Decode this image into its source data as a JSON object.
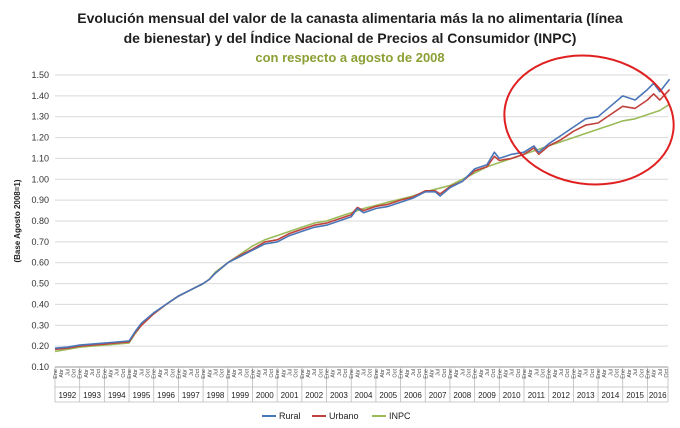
{
  "chart_data": {
    "type": "line",
    "title_line1": "Evolución mensual del valor de la canasta alimentaria más la no alimentaria (línea",
    "title_line2": "de bienestar) y del Índice Nacional de Precios al Consumidor (INPC)",
    "subtitle": "con respecto a agosto de 2008",
    "ylabel": "(Base Agosto 2008=1)",
    "ylim": [
      0.1,
      1.5
    ],
    "ytick_step": 0.1,
    "month_labels": [
      "Ene",
      "Abr",
      "Jul",
      "Oct"
    ],
    "years": [
      "1992",
      "1993",
      "1994",
      "1995",
      "1996",
      "1997",
      "1998",
      "1999",
      "2000",
      "2001",
      "2002",
      "2003",
      "2004",
      "2005",
      "2006",
      "2007",
      "2008",
      "2009",
      "2010",
      "2011",
      "2012",
      "2013",
      "2014",
      "2015",
      "2016"
    ],
    "last_year_partial_months": 10,
    "legend_position": "bottom",
    "grid": true,
    "highlight_ellipse": {
      "color": "#e02020"
    },
    "x_note": "quarterly points, t = years since Jan 1992",
    "series": [
      {
        "name": "Rural",
        "color": "#4a76b8",
        "values": [
          [
            0,
            0.19
          ],
          [
            0.5,
            0.195
          ],
          [
            1,
            0.205
          ],
          [
            1.5,
            0.21
          ],
          [
            2,
            0.215
          ],
          [
            2.5,
            0.22
          ],
          [
            3,
            0.225
          ],
          [
            3.25,
            0.27
          ],
          [
            3.5,
            0.31
          ],
          [
            4,
            0.36
          ],
          [
            4.5,
            0.4
          ],
          [
            5,
            0.44
          ],
          [
            5.5,
            0.47
          ],
          [
            6,
            0.5
          ],
          [
            6.25,
            0.52
          ],
          [
            6.5,
            0.55
          ],
          [
            7,
            0.6
          ],
          [
            7.5,
            0.63
          ],
          [
            8,
            0.66
          ],
          [
            8.5,
            0.69
          ],
          [
            9,
            0.7
          ],
          [
            9.5,
            0.73
          ],
          [
            10,
            0.75
          ],
          [
            10.5,
            0.77
          ],
          [
            11,
            0.78
          ],
          [
            11.5,
            0.8
          ],
          [
            12,
            0.82
          ],
          [
            12.25,
            0.86
          ],
          [
            12.5,
            0.84
          ],
          [
            13,
            0.86
          ],
          [
            13.5,
            0.87
          ],
          [
            14,
            0.89
          ],
          [
            14.5,
            0.91
          ],
          [
            15,
            0.94
          ],
          [
            15.4,
            0.94
          ],
          [
            15.6,
            0.92
          ],
          [
            16,
            0.96
          ],
          [
            16.5,
            0.99
          ],
          [
            17,
            1.05
          ],
          [
            17.5,
            1.07
          ],
          [
            17.8,
            1.13
          ],
          [
            18,
            1.1
          ],
          [
            18.5,
            1.12
          ],
          [
            19,
            1.13
          ],
          [
            19.4,
            1.16
          ],
          [
            19.6,
            1.13
          ],
          [
            20,
            1.17
          ],
          [
            20.5,
            1.21
          ],
          [
            21,
            1.25
          ],
          [
            21.5,
            1.29
          ],
          [
            22,
            1.3
          ],
          [
            22.5,
            1.35
          ],
          [
            23,
            1.4
          ],
          [
            23.5,
            1.38
          ],
          [
            24,
            1.43
          ],
          [
            24.25,
            1.46
          ],
          [
            24.5,
            1.42
          ],
          [
            24.9,
            1.48
          ]
        ]
      },
      {
        "name": "Urbano",
        "color": "#c0423c",
        "values": [
          [
            0,
            0.185
          ],
          [
            0.5,
            0.19
          ],
          [
            1,
            0.2
          ],
          [
            1.5,
            0.205
          ],
          [
            2,
            0.21
          ],
          [
            2.5,
            0.215
          ],
          [
            3,
            0.22
          ],
          [
            3.25,
            0.265
          ],
          [
            3.5,
            0.3
          ],
          [
            4,
            0.355
          ],
          [
            4.5,
            0.4
          ],
          [
            5,
            0.44
          ],
          [
            5.5,
            0.47
          ],
          [
            6,
            0.5
          ],
          [
            6.25,
            0.52
          ],
          [
            6.5,
            0.55
          ],
          [
            7,
            0.6
          ],
          [
            7.5,
            0.635
          ],
          [
            8,
            0.665
          ],
          [
            8.5,
            0.7
          ],
          [
            9,
            0.71
          ],
          [
            9.5,
            0.74
          ],
          [
            10,
            0.76
          ],
          [
            10.5,
            0.78
          ],
          [
            11,
            0.79
          ],
          [
            11.5,
            0.81
          ],
          [
            12,
            0.83
          ],
          [
            12.25,
            0.865
          ],
          [
            12.5,
            0.85
          ],
          [
            13,
            0.87
          ],
          [
            13.5,
            0.88
          ],
          [
            14,
            0.9
          ],
          [
            14.5,
            0.915
          ],
          [
            15,
            0.945
          ],
          [
            15.4,
            0.945
          ],
          [
            15.6,
            0.93
          ],
          [
            16,
            0.965
          ],
          [
            16.5,
            0.99
          ],
          [
            17,
            1.04
          ],
          [
            17.5,
            1.06
          ],
          [
            17.8,
            1.11
          ],
          [
            18,
            1.09
          ],
          [
            18.5,
            1.1
          ],
          [
            19,
            1.12
          ],
          [
            19.4,
            1.15
          ],
          [
            19.6,
            1.12
          ],
          [
            20,
            1.16
          ],
          [
            20.5,
            1.19
          ],
          [
            21,
            1.23
          ],
          [
            21.5,
            1.26
          ],
          [
            22,
            1.27
          ],
          [
            22.5,
            1.31
          ],
          [
            23,
            1.35
          ],
          [
            23.5,
            1.34
          ],
          [
            24,
            1.38
          ],
          [
            24.25,
            1.41
          ],
          [
            24.5,
            1.38
          ],
          [
            24.9,
            1.43
          ]
        ]
      },
      {
        "name": "INPC",
        "color": "#9bbb59",
        "values": [
          [
            0,
            0.175
          ],
          [
            0.5,
            0.185
          ],
          [
            1,
            0.195
          ],
          [
            1.5,
            0.2
          ],
          [
            2,
            0.205
          ],
          [
            2.5,
            0.21
          ],
          [
            3,
            0.215
          ],
          [
            3.25,
            0.26
          ],
          [
            3.5,
            0.3
          ],
          [
            4,
            0.355
          ],
          [
            4.5,
            0.4
          ],
          [
            5,
            0.44
          ],
          [
            5.5,
            0.47
          ],
          [
            6,
            0.5
          ],
          [
            6.25,
            0.52
          ],
          [
            6.5,
            0.555
          ],
          [
            7,
            0.6
          ],
          [
            7.5,
            0.64
          ],
          [
            8,
            0.68
          ],
          [
            8.5,
            0.71
          ],
          [
            9,
            0.73
          ],
          [
            9.5,
            0.75
          ],
          [
            10,
            0.77
          ],
          [
            10.5,
            0.79
          ],
          [
            11,
            0.8
          ],
          [
            11.5,
            0.82
          ],
          [
            12,
            0.84
          ],
          [
            12.5,
            0.86
          ],
          [
            13,
            0.875
          ],
          [
            13.5,
            0.89
          ],
          [
            14,
            0.905
          ],
          [
            14.5,
            0.92
          ],
          [
            15,
            0.94
          ],
          [
            15.5,
            0.955
          ],
          [
            16,
            0.97
          ],
          [
            16.5,
            1.0
          ],
          [
            17,
            1.03
          ],
          [
            17.5,
            1.06
          ],
          [
            18,
            1.08
          ],
          [
            18.5,
            1.1
          ],
          [
            19,
            1.12
          ],
          [
            19.5,
            1.14
          ],
          [
            20,
            1.16
          ],
          [
            20.5,
            1.18
          ],
          [
            21,
            1.2
          ],
          [
            21.5,
            1.22
          ],
          [
            22,
            1.24
          ],
          [
            22.5,
            1.26
          ],
          [
            23,
            1.28
          ],
          [
            23.5,
            1.29
          ],
          [
            24,
            1.31
          ],
          [
            24.5,
            1.33
          ],
          [
            24.9,
            1.36
          ]
        ]
      }
    ]
  }
}
